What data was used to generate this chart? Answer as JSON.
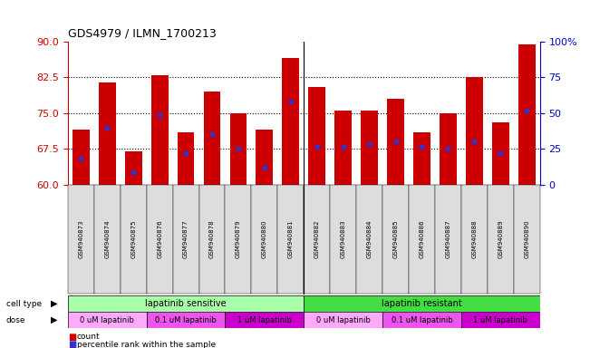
{
  "title": "GDS4979 / ILMN_1700213",
  "samples": [
    "GSM940873",
    "GSM940874",
    "GSM940875",
    "GSM940876",
    "GSM940877",
    "GSM940878",
    "GSM940879",
    "GSM940880",
    "GSM940881",
    "GSM940882",
    "GSM940883",
    "GSM940884",
    "GSM940885",
    "GSM940886",
    "GSM940887",
    "GSM940888",
    "GSM940889",
    "GSM940890"
  ],
  "bar_heights": [
    71.5,
    81.5,
    67.0,
    83.0,
    71.0,
    79.5,
    75.0,
    71.5,
    86.5,
    80.5,
    75.5,
    75.5,
    78.0,
    71.0,
    75.0,
    82.5,
    73.0,
    89.5
  ],
  "blue_markers": [
    65.5,
    72.0,
    62.5,
    74.5,
    66.5,
    70.5,
    67.5,
    63.5,
    77.5,
    68.0,
    68.0,
    68.5,
    69.0,
    68.0,
    67.5,
    69.0,
    66.5,
    75.5
  ],
  "ymin": 60,
  "ymax": 90,
  "yticks_left": [
    60,
    67.5,
    75,
    82.5,
    90
  ],
  "yticks_right": [
    0,
    25,
    50,
    75,
    100
  ],
  "bar_color": "#cc0000",
  "marker_color": "#3333cc",
  "axis_color_left": "#cc0000",
  "axis_color_right": "#0000cc",
  "background_color": "#ffffff",
  "sensitive_color": "#aaffaa",
  "resistant_color": "#44dd44",
  "dose_colors": [
    "#ffaaff",
    "#ee55ee",
    "#cc00cc",
    "#ffaaff",
    "#ee55ee",
    "#cc00cc"
  ],
  "dose_labels": [
    "0 uM lapatinib",
    "0.1 uM lapatinib",
    "1 uM lapatinib",
    "0 uM lapatinib",
    "0.1 uM lapatinib",
    "1 uM lapatinib"
  ],
  "dose_boundaries": [
    0,
    3,
    6,
    9,
    12,
    15,
    18
  ],
  "n_sensitive": 9,
  "n_total": 18,
  "tick_bg_color": "#dddddd"
}
